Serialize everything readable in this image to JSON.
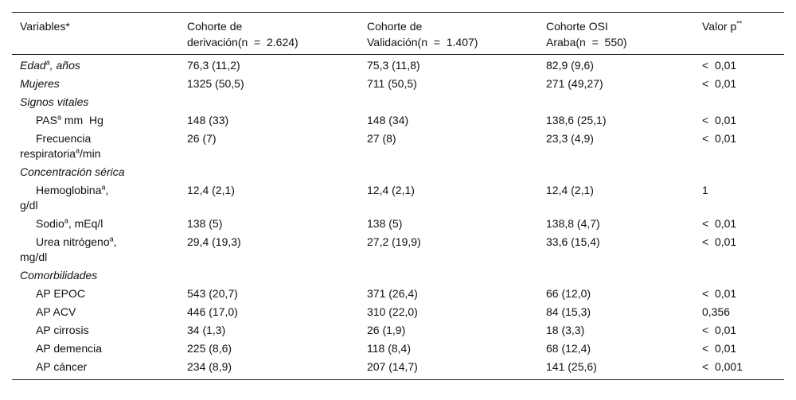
{
  "table": {
    "header": [
      [
        [
          "Variables*"
        ]
      ],
      [
        [
          "Cohorte de"
        ],
        [
          "derivación(n  =  2.624)"
        ]
      ],
      [
        [
          "Cohorte de"
        ],
        [
          "Validación(n  =  1.407)"
        ]
      ],
      [
        [
          "Cohorte OSI"
        ],
        [
          "Araba(n  =  550)"
        ]
      ],
      [
        [
          "Valor p",
          {
            "sup": "**"
          }
        ]
      ]
    ],
    "rows": [
      {
        "label": [
          [
            "Edad",
            {
              "sup": "a"
            },
            ", años"
          ]
        ],
        "italic": true,
        "values": [
          "76,3 (11,2)",
          "75,3 (11,8)",
          "82,9 (9,6)",
          "<  0,01"
        ]
      },
      {
        "label": [
          [
            "Mujeres"
          ]
        ],
        "italic": true,
        "values": [
          "1325 (50,5)",
          "711 (50,5)",
          "271 (49,27)",
          "<  0,01"
        ]
      },
      {
        "label": [
          [
            "Signos vitales"
          ]
        ],
        "italic": true,
        "values": []
      },
      {
        "label": [
          [
            "PAS",
            {
              "sup": "a"
            },
            " mm  Hg"
          ]
        ],
        "indent": true,
        "values": [
          "148 (33)",
          "148 (34)",
          "138,6 (25,1)",
          "<  0,01"
        ]
      },
      {
        "label": [
          [
            "Frecuencia"
          ],
          [
            "respiratoria",
            {
              "sup": "a"
            },
            "/min"
          ]
        ],
        "indent": true,
        "values": [
          "26 (7)",
          "27 (8)",
          "23,3 (4,9)",
          "<  0,01"
        ]
      },
      {
        "label": [
          [
            "Concentración sérica"
          ]
        ],
        "italic": true,
        "values": []
      },
      {
        "label": [
          [
            "Hemoglobina",
            {
              "sup": "a"
            },
            ","
          ],
          [
            "g/dl"
          ]
        ],
        "indent": true,
        "values": [
          "12,4 (2,1)",
          "12,4 (2,1)",
          "12,4 (2,1)",
          "1"
        ]
      },
      {
        "label": [
          [
            "Sodio",
            {
              "sup": "a"
            },
            ", mEq/l"
          ]
        ],
        "indent": true,
        "values": [
          "138 (5)",
          "138 (5)",
          "138,8 (4,7)",
          "<  0,01"
        ]
      },
      {
        "label": [
          [
            "Urea nitrógeno",
            {
              "sup": "a"
            },
            ","
          ],
          [
            "mg/dl"
          ]
        ],
        "indent": true,
        "values": [
          "29,4 (19,3)",
          "27,2 (19,9)",
          "33,6 (15,4)",
          "<  0,01"
        ]
      },
      {
        "label": [
          [
            "Comorbilidades"
          ]
        ],
        "italic": true,
        "values": []
      },
      {
        "label": [
          [
            "AP EPOC"
          ]
        ],
        "indent": true,
        "values": [
          "543 (20,7)",
          "371 (26,4)",
          "66 (12,0)",
          "<  0,01"
        ]
      },
      {
        "label": [
          [
            "AP ACV"
          ]
        ],
        "indent": true,
        "values": [
          "446 (17,0)",
          "310 (22,0)",
          "84 (15,3)",
          "0,356"
        ]
      },
      {
        "label": [
          [
            "AP cirrosis"
          ]
        ],
        "indent": true,
        "values": [
          "34 (1,3)",
          "26 (1,9)",
          "18 (3,3)",
          "<  0,01"
        ]
      },
      {
        "label": [
          [
            "AP demencia"
          ]
        ],
        "indent": true,
        "values": [
          "225 (8,6)",
          "118 (8,4)",
          "68 (12,4)",
          "<  0,01"
        ]
      },
      {
        "label": [
          [
            "AP cáncer"
          ]
        ],
        "indent": true,
        "values": [
          "234 (8,9)",
          "207 (14,7)",
          "141 (25,6)",
          "<  0,001"
        ]
      }
    ]
  }
}
